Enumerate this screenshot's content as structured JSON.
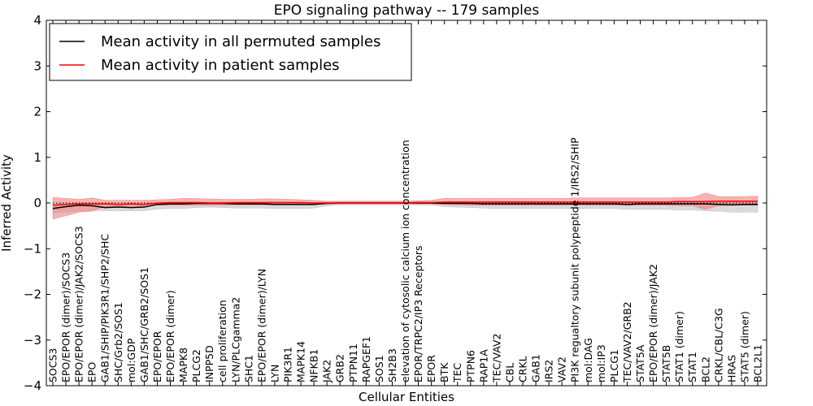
{
  "chart_data": {
    "type": "line",
    "title": "EPO signaling pathway -- 179 samples",
    "xlabel": "Cellular Entities",
    "ylabel": "Inferred Activity",
    "ylim": [
      -4,
      4
    ],
    "yticks": [
      4,
      3,
      2,
      1,
      0,
      -1,
      -2,
      -3,
      -4
    ],
    "ytick_labels": [
      "4",
      "3",
      "2",
      "1",
      "0",
      "−1",
      "−2",
      "−3",
      "−4"
    ],
    "grid": false,
    "legend_position": "top-left",
    "categories": [
      "SOCS3",
      "EPO/EPOR (dimer)/SOCS3",
      "EPO/EPOR (dimer)/JAK2/SOCS3",
      "EPO",
      "GAB1/SHIP/PIK3R1/SHP2/SHC",
      "SHC/Grb2/SOS1",
      "mol:GDP",
      "GAB1/SHC/GRB2/SOS1",
      "EPO/EPOR",
      "EPO/EPOR (dimer)",
      "MAPK8",
      "PLCG2",
      "INPP5D",
      "cell proliferation",
      "LYN/PLCgamma2",
      "SHC1",
      "EPO/EPOR (dimer)/LYN",
      "LYN",
      "PIK3R1",
      "MAPK14",
      "NFKB1",
      "JAK2",
      "GRB2",
      "PTPN11",
      "RAPGEF1",
      "SOS1",
      "SH2B3",
      "elevation of cytosolic calcium ion concentration",
      "EPOR/TRPC2/IP3 Receptors",
      "EPOR",
      "BTK",
      "TEC",
      "PTPN6",
      "RAP1A",
      "TEC/VAV2",
      "CBL",
      "CRKL",
      "GAB1",
      "IRS2",
      "VAV2",
      "PI3K regualtory subunit polypeptide 1/IRS2/SHIP",
      "mol:DAG",
      "mol:IP3",
      "PLCG1",
      "TEC/VAV2/GRB2",
      "STAT5A",
      "EPO/EPOR (dimer)/JAK2",
      "STAT5B",
      "STAT1 (dimer)",
      "STAT1",
      "BCL2",
      "CRKL/CBL/C3G",
      "HRAS",
      "STAT5 (dimer)",
      "BCL2L1"
    ],
    "series": [
      {
        "name": "Mean activity in all permuted samples",
        "color": "#000000",
        "values": [
          -0.12,
          -0.08,
          -0.05,
          -0.06,
          -0.1,
          -0.09,
          -0.1,
          -0.09,
          -0.03,
          -0.02,
          -0.02,
          -0.01,
          -0.01,
          -0.01,
          -0.02,
          -0.02,
          -0.02,
          -0.03,
          -0.03,
          -0.03,
          -0.03,
          -0.01,
          0.0,
          0.0,
          0.0,
          0.0,
          0.0,
          0.0,
          0.0,
          0.0,
          -0.01,
          -0.01,
          -0.01,
          -0.02,
          -0.02,
          -0.02,
          -0.02,
          -0.02,
          -0.02,
          -0.02,
          -0.02,
          -0.02,
          -0.02,
          -0.02,
          -0.03,
          -0.02,
          -0.02,
          -0.02,
          -0.02,
          -0.02,
          -0.02,
          -0.03,
          -0.04,
          -0.03,
          -0.03
        ],
        "band_lower": [
          -0.22,
          -0.2,
          -0.17,
          -0.16,
          -0.17,
          -0.17,
          -0.17,
          -0.17,
          -0.13,
          -0.12,
          -0.12,
          -0.1,
          -0.09,
          -0.1,
          -0.11,
          -0.11,
          -0.11,
          -0.12,
          -0.12,
          -0.12,
          -0.11,
          -0.06,
          -0.04,
          -0.04,
          -0.04,
          -0.04,
          -0.04,
          -0.04,
          -0.04,
          -0.04,
          -0.08,
          -0.09,
          -0.1,
          -0.11,
          -0.12,
          -0.12,
          -0.12,
          -0.12,
          -0.12,
          -0.12,
          -0.12,
          -0.12,
          -0.12,
          -0.12,
          -0.14,
          -0.14,
          -0.14,
          -0.14,
          -0.15,
          -0.15,
          -0.17,
          -0.18,
          -0.2,
          -0.2,
          -0.2
        ],
        "band_upper": [
          -0.02,
          -0.01,
          0.0,
          0.0,
          -0.02,
          -0.02,
          -0.02,
          -0.02,
          0.0,
          0.01,
          0.01,
          0.02,
          0.02,
          0.02,
          0.01,
          0.01,
          0.01,
          0.01,
          0.01,
          0.01,
          0.01,
          0.02,
          0.03,
          0.03,
          0.03,
          0.03,
          0.03,
          0.03,
          0.03,
          0.03,
          0.02,
          0.02,
          0.02,
          0.02,
          0.02,
          0.02,
          0.02,
          0.02,
          0.02,
          0.02,
          0.02,
          0.02,
          0.02,
          0.02,
          0.02,
          0.02,
          0.02,
          0.02,
          0.03,
          0.03,
          0.03,
          0.02,
          0.02,
          0.02,
          0.02
        ],
        "band_color": "#bbbbbb"
      },
      {
        "name": "Mean activity in patient samples",
        "color": "#ff0000",
        "values": [
          -0.05,
          -0.03,
          -0.02,
          -0.02,
          -0.02,
          -0.03,
          -0.02,
          -0.03,
          0.0,
          0.01,
          0.01,
          0.01,
          0.0,
          0.0,
          0.01,
          0.01,
          0.01,
          0.01,
          0.01,
          0.01,
          0.0,
          0.0,
          0.0,
          0.0,
          0.0,
          0.0,
          0.0,
          0.0,
          0.01,
          0.01,
          0.02,
          0.02,
          0.02,
          0.02,
          0.02,
          0.02,
          0.02,
          0.02,
          0.02,
          0.02,
          0.02,
          0.02,
          0.02,
          0.02,
          0.02,
          0.02,
          0.02,
          0.02,
          0.03,
          0.03,
          0.03,
          0.04,
          0.04,
          0.04,
          0.04
        ],
        "band_lower": [
          -0.35,
          -0.28,
          -0.2,
          -0.18,
          -0.08,
          -0.07,
          -0.07,
          -0.07,
          -0.05,
          -0.05,
          -0.05,
          -0.05,
          -0.05,
          -0.05,
          -0.04,
          -0.04,
          -0.04,
          -0.04,
          -0.04,
          -0.04,
          -0.03,
          -0.02,
          -0.02,
          -0.02,
          -0.02,
          -0.02,
          -0.02,
          -0.02,
          -0.02,
          -0.02,
          -0.03,
          -0.04,
          -0.05,
          -0.05,
          -0.05,
          -0.05,
          -0.05,
          -0.05,
          -0.05,
          -0.05,
          -0.05,
          -0.05,
          -0.05,
          -0.05,
          -0.05,
          -0.05,
          -0.05,
          -0.05,
          -0.06,
          -0.06,
          -0.14,
          -0.06,
          -0.05,
          -0.05,
          -0.05
        ],
        "band_upper": [
          0.12,
          0.1,
          0.08,
          0.11,
          0.06,
          0.06,
          0.06,
          0.06,
          0.07,
          0.08,
          0.1,
          0.1,
          0.09,
          0.08,
          0.08,
          0.08,
          0.09,
          0.09,
          0.08,
          0.07,
          0.06,
          0.04,
          0.04,
          0.04,
          0.04,
          0.04,
          0.04,
          0.04,
          0.05,
          0.06,
          0.1,
          0.1,
          0.1,
          0.1,
          0.1,
          0.1,
          0.1,
          0.1,
          0.1,
          0.1,
          0.11,
          0.11,
          0.11,
          0.11,
          0.11,
          0.11,
          0.11,
          0.11,
          0.12,
          0.12,
          0.22,
          0.14,
          0.14,
          0.14,
          0.15
        ],
        "band_color": "#f08080"
      }
    ],
    "reference_line": {
      "y": 0,
      "style": "dotted"
    }
  }
}
